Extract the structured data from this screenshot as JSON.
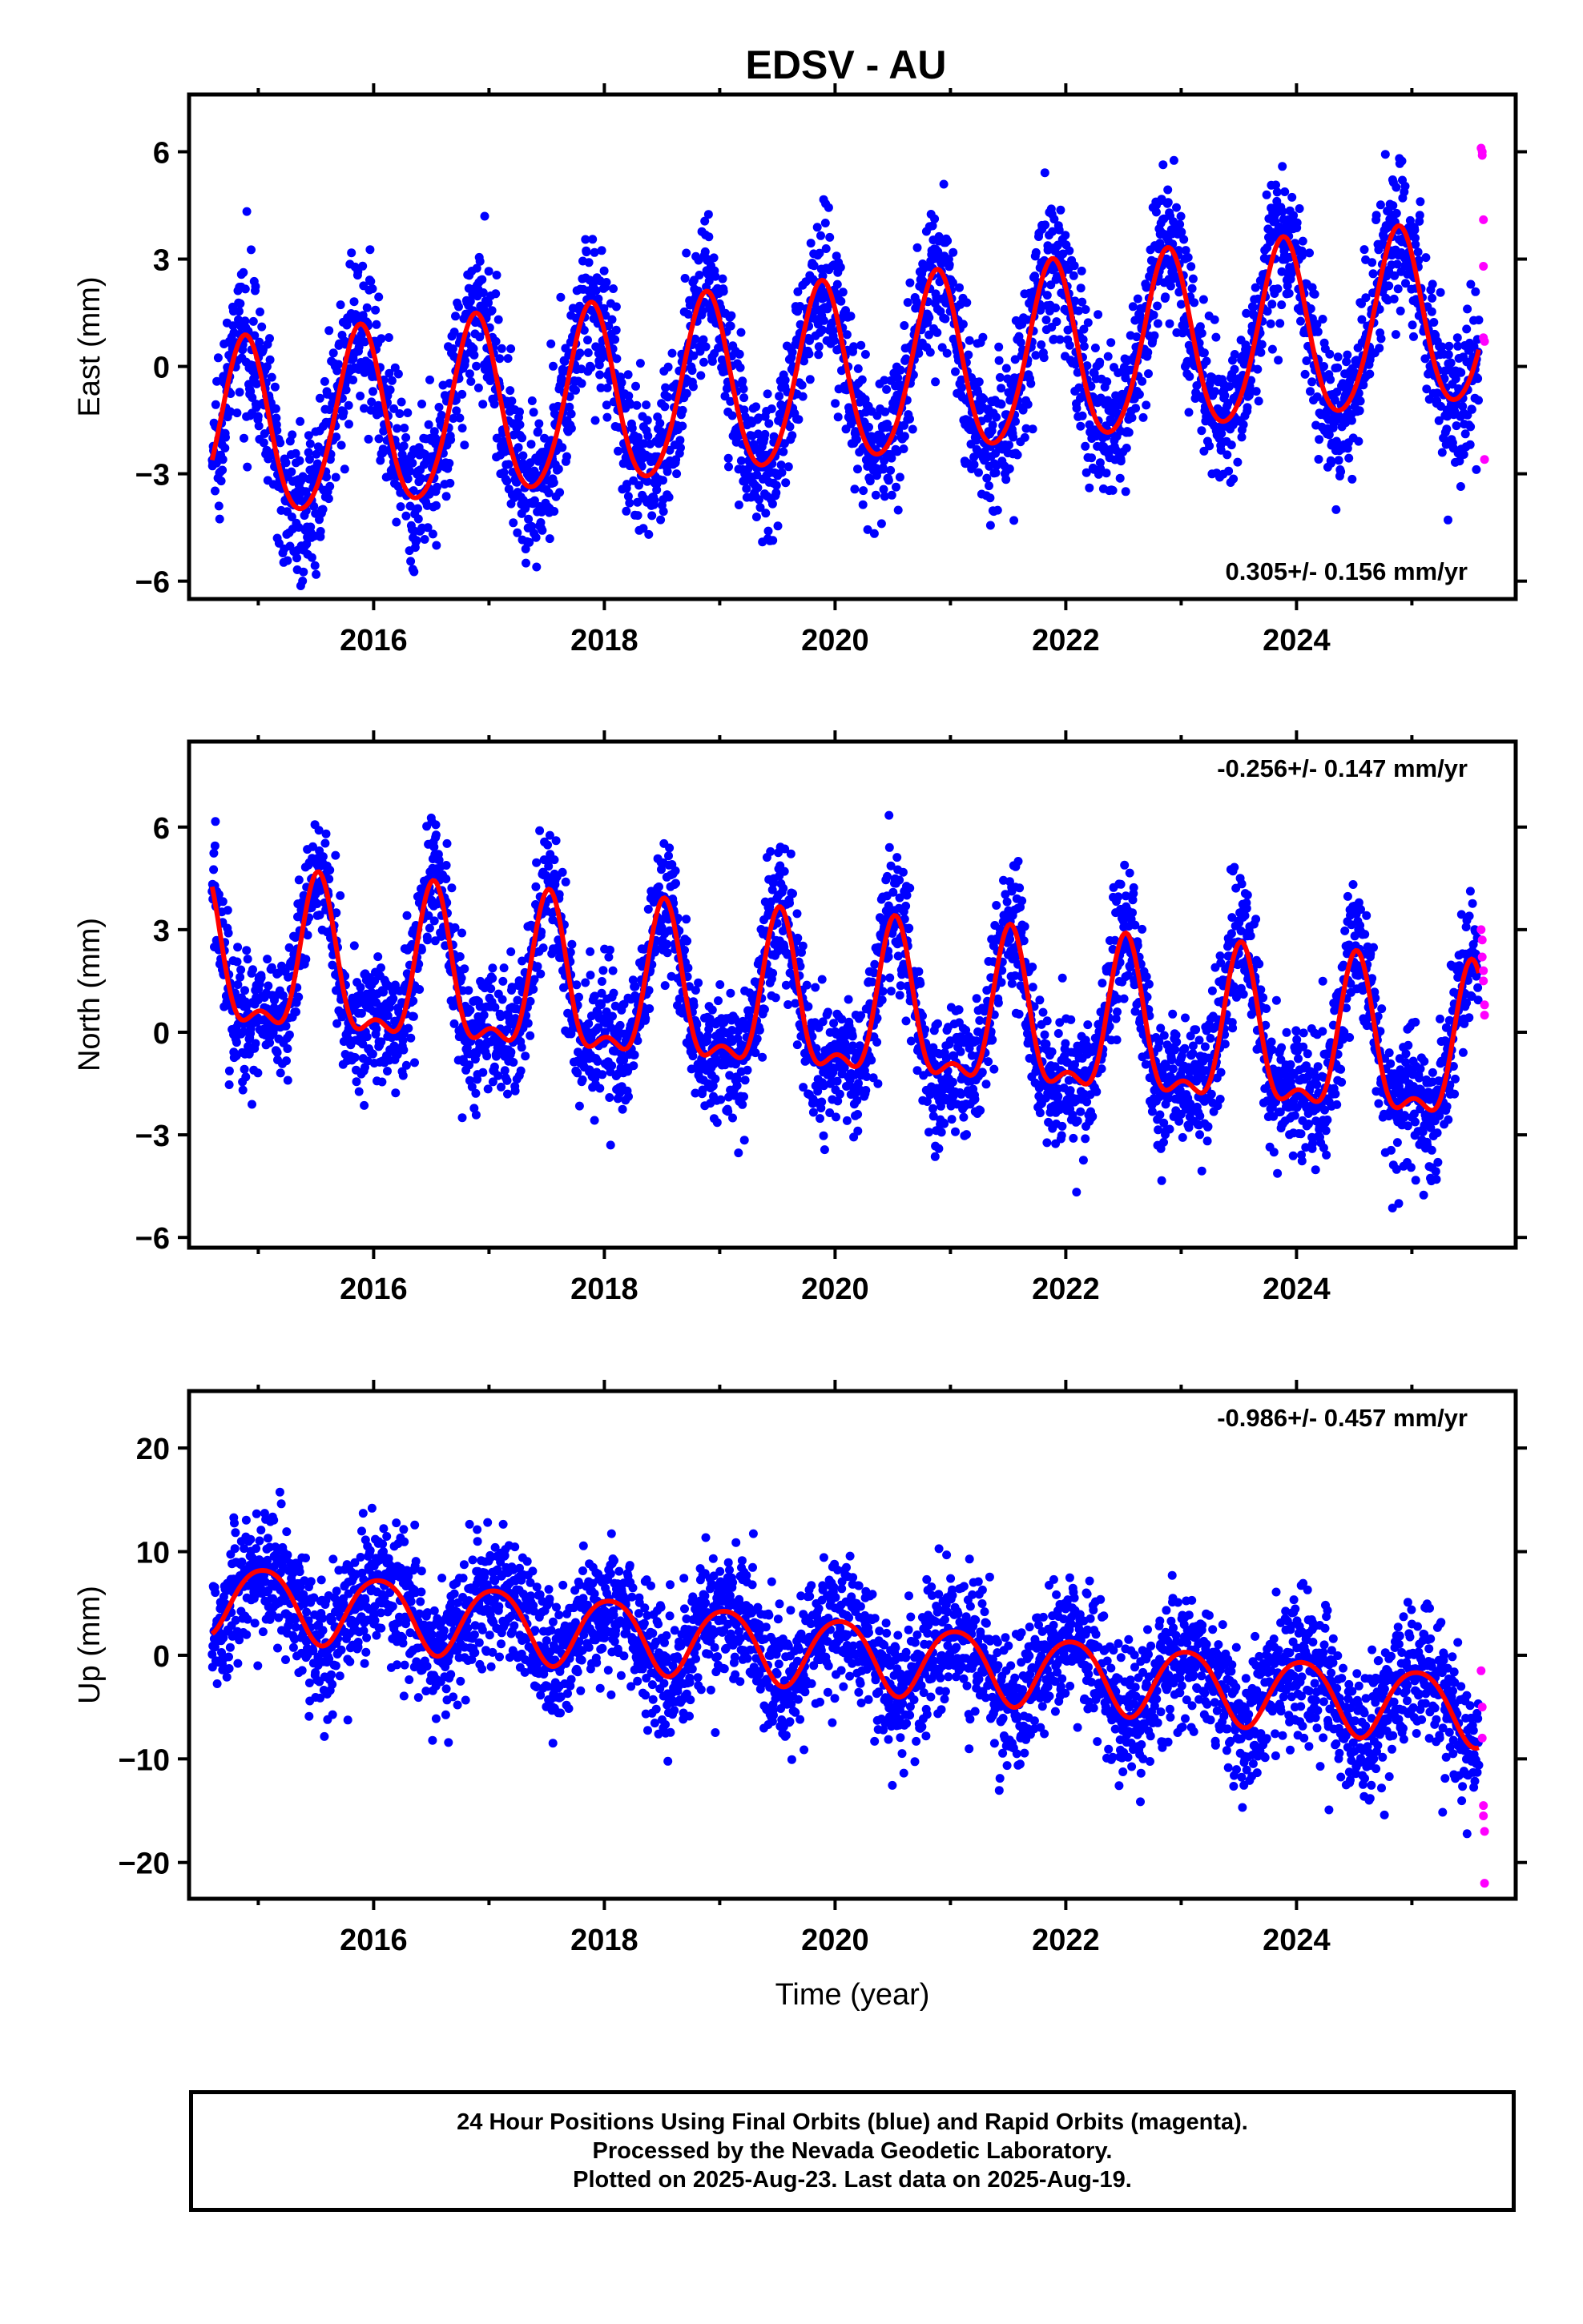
{
  "title": "EDSV - AU",
  "colors": {
    "final": "#0000ff",
    "rapid": "#ff00ff",
    "model": "#ff0000",
    "frame": "#000000"
  },
  "footer": {
    "line1": "24 Hour Positions Using Final Orbits (blue) and Rapid Orbits (magenta).",
    "line2": "Processed by the Nevada Geodetic Laboratory.",
    "line3": "Plotted on 2025-Aug-23. Last data on 2025-Aug-19."
  },
  "chart_data": [
    {
      "type": "scatter",
      "component": "east",
      "ylabel": "East (mm)",
      "xlabel": "",
      "xlim": [
        2014.4,
        2025.9
      ],
      "ylim": [
        -6.5,
        7.6
      ],
      "yticks": [
        -6,
        -3,
        0,
        3,
        6
      ],
      "xticks": [
        2016,
        2018,
        2020,
        2022,
        2024
      ],
      "rate_label": "0.305+/- 0.156 mm/yr",
      "rate_position": "bottom-right",
      "trend": {
        "slope": 0.305,
        "intercept": -0.3,
        "ref_year": 2020.0
      },
      "seasonal": {
        "annual_amp": 2.5,
        "annual_peak": 0.88,
        "semiannual_amp": 0.25,
        "semiannual_peak": 0.9
      },
      "scatter_sd": 1.05,
      "series": [
        {
          "name": "Final Orbits (blue)",
          "x_range": [
            2014.6,
            2025.58
          ],
          "n_points": 3500
        },
        {
          "name": "Rapid Orbits (magenta)",
          "x": [
            2025.6,
            2025.61,
            2025.61,
            2025.62,
            2025.62,
            2025.62,
            2025.63,
            2025.63
          ],
          "y": [
            6.1,
            5.9,
            6.0,
            4.1,
            2.8,
            0.8,
            0.7,
            -2.6
          ]
        }
      ]
    },
    {
      "type": "scatter",
      "component": "north",
      "ylabel": "North (mm)",
      "xlabel": "",
      "xlim": [
        2014.4,
        2025.9
      ],
      "ylim": [
        -6.3,
        8.5
      ],
      "yticks": [
        -6,
        -3,
        0,
        3,
        6
      ],
      "xticks": [
        2016,
        2018,
        2020,
        2022,
        2024
      ],
      "rate_label": "-0.256+/- 0.147 mm/yr",
      "rate_position": "top-right",
      "trend": {
        "slope": -0.256,
        "intercept": 0.55,
        "ref_year": 2020.0
      },
      "seasonal": {
        "annual_amp": 2.1,
        "annual_peak": 0.52,
        "semiannual_amp": 0.9,
        "semiannual_peak": 0.52
      },
      "scatter_sd": 0.95,
      "series": [
        {
          "name": "Final Orbits (blue)",
          "x_range": [
            2014.6,
            2025.58
          ],
          "n_points": 3500
        },
        {
          "name": "Rapid Orbits (magenta)",
          "x": [
            2025.6,
            2025.61,
            2025.61,
            2025.62,
            2025.62,
            2025.63,
            2025.63
          ],
          "y": [
            3.0,
            2.7,
            2.2,
            1.8,
            1.5,
            0.8,
            0.5
          ]
        }
      ]
    },
    {
      "type": "scatter",
      "component": "up",
      "ylabel": "Up (mm)",
      "xlabel": "Time (year)",
      "xlim": [
        2014.4,
        2025.9
      ],
      "ylim": [
        -23.5,
        25.5
      ],
      "yticks": [
        -20,
        -10,
        0,
        10,
        20
      ],
      "xticks": [
        2016,
        2018,
        2020,
        2022,
        2024
      ],
      "rate_label": "-0.986+/- 0.457 mm/yr",
      "rate_position": "top-right",
      "trend": {
        "slope": -0.986,
        "intercept": 0.3,
        "ref_year": 2020.0
      },
      "seasonal": {
        "annual_amp": 3.4,
        "annual_peak": 0.05,
        "semiannual_amp": 0.4,
        "semiannual_peak": 0.3
      },
      "scatter_sd": 3.2,
      "series": [
        {
          "name": "Final Orbits (blue)",
          "x_range": [
            2014.6,
            2025.58
          ],
          "n_points": 3500
        },
        {
          "name": "Rapid Orbits (magenta)",
          "x": [
            2025.6,
            2025.61,
            2025.61,
            2025.62,
            2025.62,
            2025.63,
            2025.63
          ],
          "y": [
            -1.5,
            -5.0,
            -8.0,
            -14.5,
            -15.5,
            -17.0,
            -22.0
          ]
        }
      ]
    }
  ]
}
